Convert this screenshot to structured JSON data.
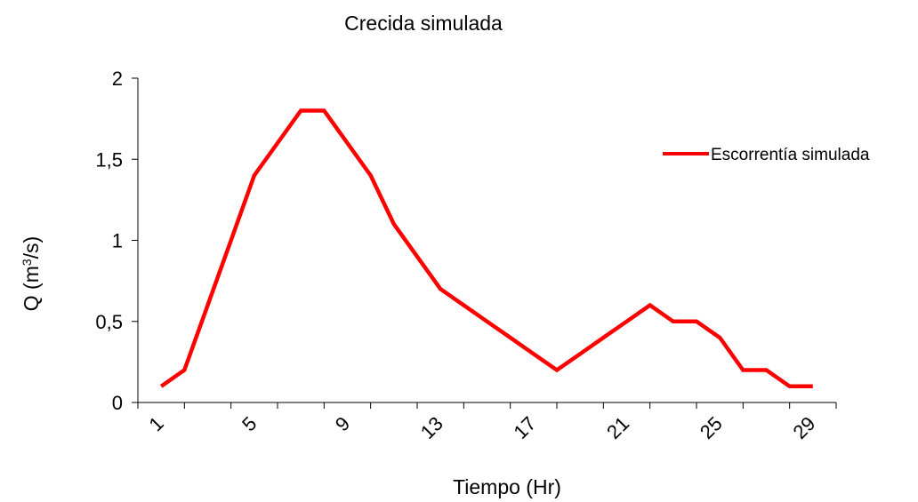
{
  "chart_data": {
    "type": "line",
    "title": "Crecida simulada",
    "xlabel": "Tiempo (Hr)",
    "ylabel": "Q (m³/s)",
    "ylabel_parts": {
      "pre": "Q (m",
      "sup": "3",
      "post": "/s)"
    },
    "ylim": [
      0,
      2
    ],
    "yticks": [
      0,
      0.5,
      1,
      1.5,
      2
    ],
    "ytick_labels": [
      "0",
      "0,5",
      "1",
      "1,5",
      "2"
    ],
    "xlim": [
      0,
      30
    ],
    "xticks": [
      1,
      5,
      9,
      13,
      17,
      21,
      25,
      29
    ],
    "xtick_labels": [
      "1",
      "5",
      "9",
      "13",
      "17",
      "21",
      "25",
      "29"
    ],
    "grid": false,
    "legend_position": "top-right",
    "series": [
      {
        "name": "Escorrentía simulada",
        "color": "#ff0000",
        "x": [
          1,
          2,
          3,
          4,
          5,
          6,
          7,
          8,
          9,
          10,
          11,
          12,
          13,
          14,
          15,
          16,
          17,
          18,
          19,
          20,
          21,
          22,
          23,
          24,
          25,
          26,
          27,
          28,
          29
        ],
        "values": [
          0.1,
          0.2,
          0.6,
          1.0,
          1.4,
          1.6,
          1.8,
          1.8,
          1.6,
          1.4,
          1.1,
          0.9,
          0.7,
          0.6,
          0.5,
          0.4,
          0.3,
          0.2,
          0.3,
          0.4,
          0.5,
          0.6,
          0.5,
          0.5,
          0.4,
          0.2,
          0.2,
          0.1,
          0.1
        ]
      }
    ]
  }
}
